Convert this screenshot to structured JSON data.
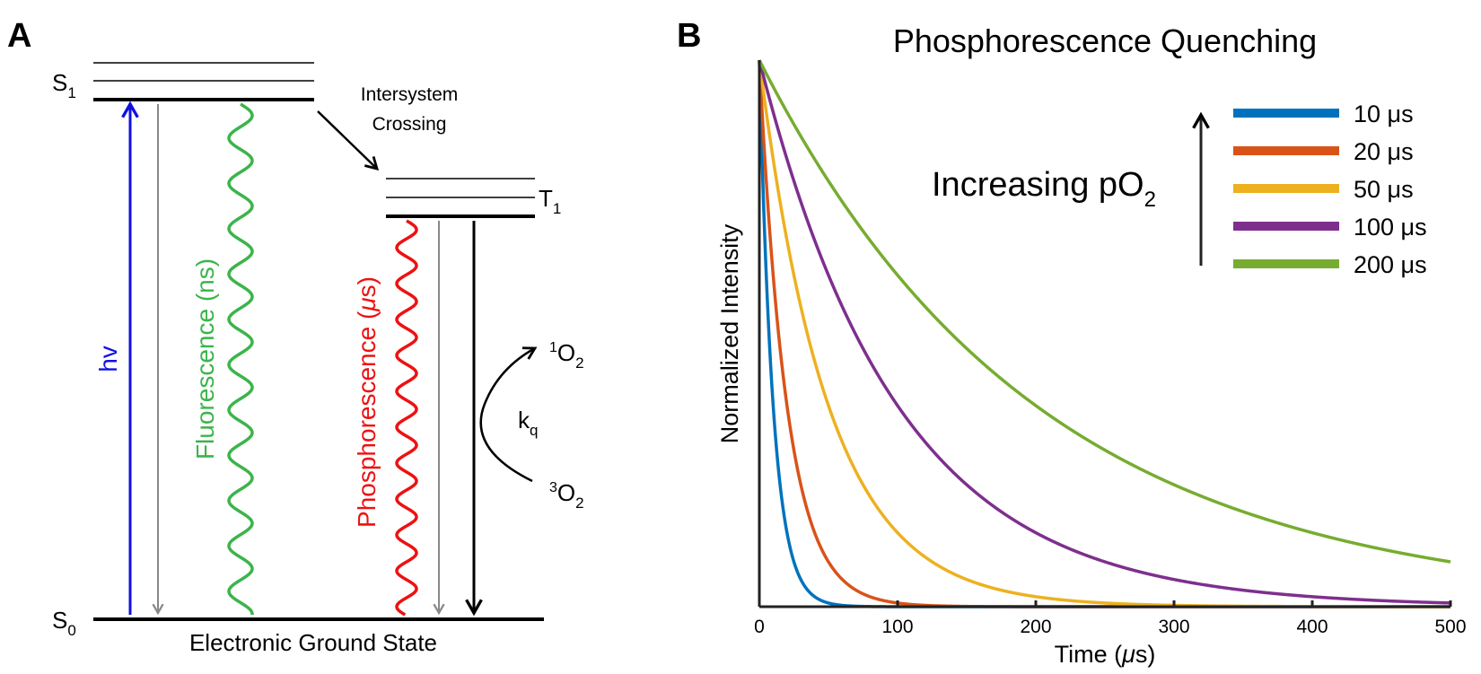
{
  "panel_a": {
    "label": "A",
    "s1_main": "S",
    "s1_sub": "1",
    "t1_main": "T",
    "t1_sub": "1",
    "s0_main": "S",
    "s0_sub": "0",
    "isc_line1": "Intersystem",
    "isc_line2": "Crossing",
    "hv": "hv",
    "fluorescence": "Fluorescence (ns)",
    "phos_prefix": "Phosphorescence (",
    "phos_mu": "μ",
    "phos_suffix": "s)",
    "ground_state": "Electronic Ground State",
    "singlet_o2_sup": "1",
    "singlet_o2": "O",
    "singlet_o2_sub": "2",
    "kq_main": "k",
    "kq_sub": "q",
    "triplet_o2_sup": "3",
    "triplet_o2": "O",
    "triplet_o2_sub": "2",
    "colors": {
      "hv": "#1010e0",
      "fluorescence": "#3cb44b",
      "phosphorescence": "#ee1111",
      "gray": "#888888"
    }
  },
  "panel_b": {
    "label": "B",
    "increasing_main": "Increasing pO",
    "increasing_sub": "2",
    "mu": "μ",
    "unit_s": "s"
  },
  "chart_data": {
    "type": "line",
    "title": "Phosphorescence Quenching",
    "xlabel_prefix": "Time (",
    "xlabel_mu": "μ",
    "xlabel_suffix": "s)",
    "ylabel": "Normalized Intensity",
    "xlim": [
      0,
      500
    ],
    "ylim": [
      0,
      1
    ],
    "x_ticks": [
      "0",
      "100",
      "200",
      "300",
      "400",
      "500"
    ],
    "y_ticks_shown": false,
    "grid": false,
    "legend_position": "top-right",
    "function": "exp(-t/tau)",
    "series": [
      {
        "name": "10 μs",
        "tau": 10,
        "color": "#0072BD"
      },
      {
        "name": "20 μs",
        "tau": 20,
        "color": "#D95319"
      },
      {
        "name": "50 μs",
        "tau": 50,
        "color": "#EDB120"
      },
      {
        "name": "100 μs",
        "tau": 100,
        "color": "#7E2F8E"
      },
      {
        "name": "200 μs",
        "tau": 200,
        "color": "#77AC30"
      }
    ]
  }
}
